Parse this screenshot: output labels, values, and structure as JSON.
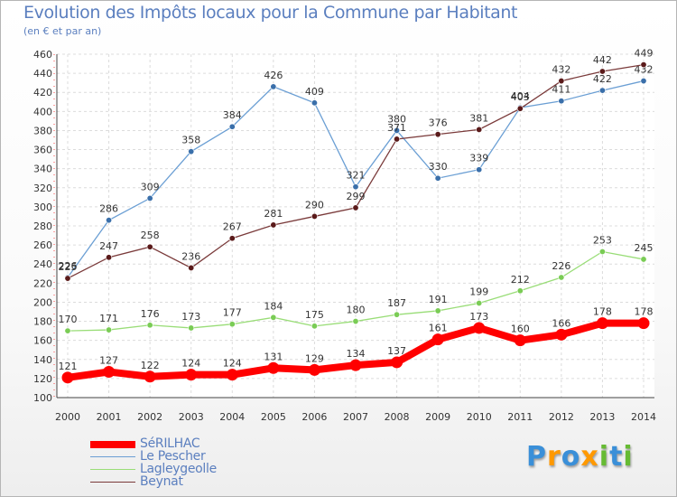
{
  "title": "Evolution des Impôts locaux pour la Commune par Habitant",
  "subtitle": "(en € et par an)",
  "logo": "Proxiti",
  "chart_data": {
    "type": "line",
    "title": "Evolution des Impôts locaux pour la Commune par Habitant",
    "subtitle": "(en € et par an)",
    "xlabel": "",
    "ylabel": "",
    "ylim": [
      100,
      460
    ],
    "ytick_step": 20,
    "grid": true,
    "legend_position": "bottom-left",
    "categories": [
      "2000",
      "2001",
      "2002",
      "2003",
      "2004",
      "2005",
      "2006",
      "2007",
      "2008",
      "2009",
      "2010",
      "2011",
      "2012",
      "2013",
      "2014"
    ],
    "series": [
      {
        "name": "Le Pescher",
        "color": "#6b9fd4",
        "marker": "#3a6faa",
        "values": [
          226,
          286,
          309,
          358,
          384,
          426,
          409,
          321,
          380,
          330,
          339,
          404,
          411,
          422,
          432
        ]
      },
      {
        "name": "Lagleygeolle",
        "color": "#99dd77",
        "marker": "#7acc55",
        "values": [
          170,
          171,
          176,
          173,
          177,
          184,
          175,
          180,
          187,
          191,
          199,
          212,
          226,
          253,
          245
        ]
      },
      {
        "name": "Beynat",
        "color": "#7a3a3a",
        "marker": "#5a1a1a",
        "values": [
          225,
          247,
          258,
          236,
          267,
          281,
          290,
          299,
          371,
          376,
          381,
          403,
          432,
          442,
          449
        ]
      },
      {
        "name": "SéRILHAC",
        "color": "#ff0000",
        "marker": "#ff0000",
        "values": [
          121,
          127,
          122,
          124,
          124,
          131,
          129,
          134,
          137,
          161,
          173,
          160,
          166,
          178,
          178
        ]
      }
    ]
  },
  "legend": [
    {
      "name": "SéRILHAC",
      "color": "#ff0000"
    },
    {
      "name": "Le Pescher",
      "color": "#6b9fd4"
    },
    {
      "name": "Lagleygeolle",
      "color": "#99dd77"
    },
    {
      "name": "Beynat",
      "color": "#7a3a3a"
    }
  ]
}
